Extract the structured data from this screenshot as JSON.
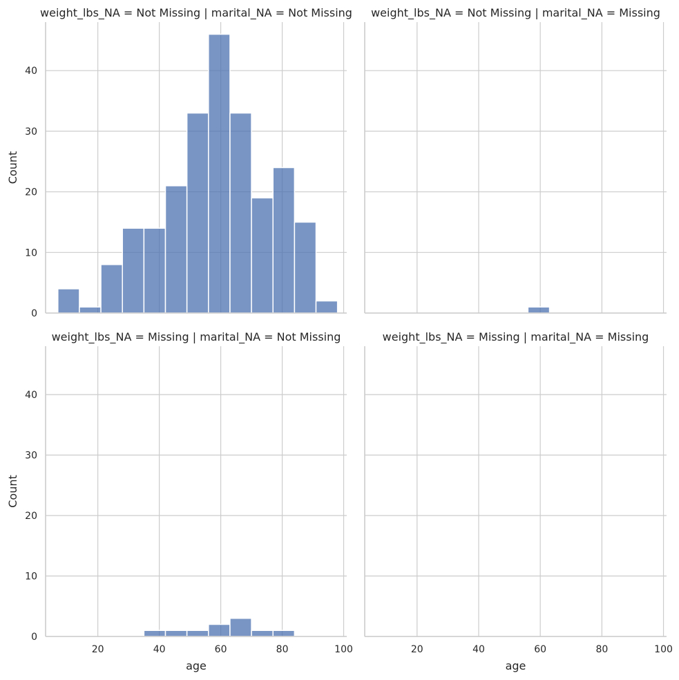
{
  "chart_data": [
    {
      "type": "bar",
      "title": "weight_lbs_NA = Not Missing | marital_NA = Not Missing",
      "xlabel": "",
      "ylabel": "Count",
      "xlim": [
        3,
        101
      ],
      "ylim": [
        0,
        48
      ],
      "xticks": [
        "20",
        "40",
        "60",
        "80",
        "100"
      ],
      "yticks": [
        "0",
        "10",
        "20",
        "30",
        "40"
      ],
      "grid": true,
      "bins": [
        {
          "x0": 7,
          "x1": 14,
          "count": 4
        },
        {
          "x0": 14,
          "x1": 21,
          "count": 1
        },
        {
          "x0": 21,
          "x1": 28,
          "count": 8
        },
        {
          "x0": 28,
          "x1": 35,
          "count": 14
        },
        {
          "x0": 35,
          "x1": 42,
          "count": 14
        },
        {
          "x0": 42,
          "x1": 49,
          "count": 21
        },
        {
          "x0": 49,
          "x1": 56,
          "count": 33
        },
        {
          "x0": 56,
          "x1": 63,
          "count": 46
        },
        {
          "x0": 63,
          "x1": 70,
          "count": 33
        },
        {
          "x0": 70,
          "x1": 77,
          "count": 19
        },
        {
          "x0": 77,
          "x1": 84,
          "count": 24
        },
        {
          "x0": 84,
          "x1": 91,
          "count": 15
        },
        {
          "x0": 91,
          "x1": 98,
          "count": 2
        }
      ]
    },
    {
      "type": "bar",
      "title": "weight_lbs_NA = Not Missing | marital_NA = Missing",
      "xlabel": "",
      "ylabel": "",
      "xlim": [
        3,
        101
      ],
      "ylim": [
        0,
        48
      ],
      "xticks": [
        "20",
        "40",
        "60",
        "80",
        "100"
      ],
      "yticks": [
        "0",
        "10",
        "20",
        "30",
        "40"
      ],
      "grid": true,
      "bins": [
        {
          "x0": 56,
          "x1": 63,
          "count": 1
        }
      ]
    },
    {
      "type": "bar",
      "title": "weight_lbs_NA = Missing | marital_NA = Not Missing",
      "xlabel": "age",
      "ylabel": "Count",
      "xlim": [
        3,
        101
      ],
      "ylim": [
        0,
        48
      ],
      "xticks": [
        "20",
        "40",
        "60",
        "80",
        "100"
      ],
      "yticks": [
        "0",
        "10",
        "20",
        "30",
        "40"
      ],
      "grid": true,
      "bins": [
        {
          "x0": 35,
          "x1": 42,
          "count": 1
        },
        {
          "x0": 42,
          "x1": 49,
          "count": 1
        },
        {
          "x0": 49,
          "x1": 56,
          "count": 1
        },
        {
          "x0": 56,
          "x1": 63,
          "count": 2
        },
        {
          "x0": 63,
          "x1": 70,
          "count": 3
        },
        {
          "x0": 70,
          "x1": 77,
          "count": 1
        },
        {
          "x0": 77,
          "x1": 84,
          "count": 1
        }
      ]
    },
    {
      "type": "bar",
      "title": "weight_lbs_NA = Missing | marital_NA = Missing",
      "xlabel": "age",
      "ylabel": "",
      "xlim": [
        3,
        101
      ],
      "ylim": [
        0,
        48
      ],
      "xticks": [
        "20",
        "40",
        "60",
        "80",
        "100"
      ],
      "yticks": [
        "0",
        "10",
        "20",
        "30",
        "40"
      ],
      "grid": true,
      "bins": []
    }
  ],
  "colors": {
    "bar": "#4c72b0",
    "grid": "#cccccc",
    "text": "#262626",
    "background": "#ffffff"
  }
}
